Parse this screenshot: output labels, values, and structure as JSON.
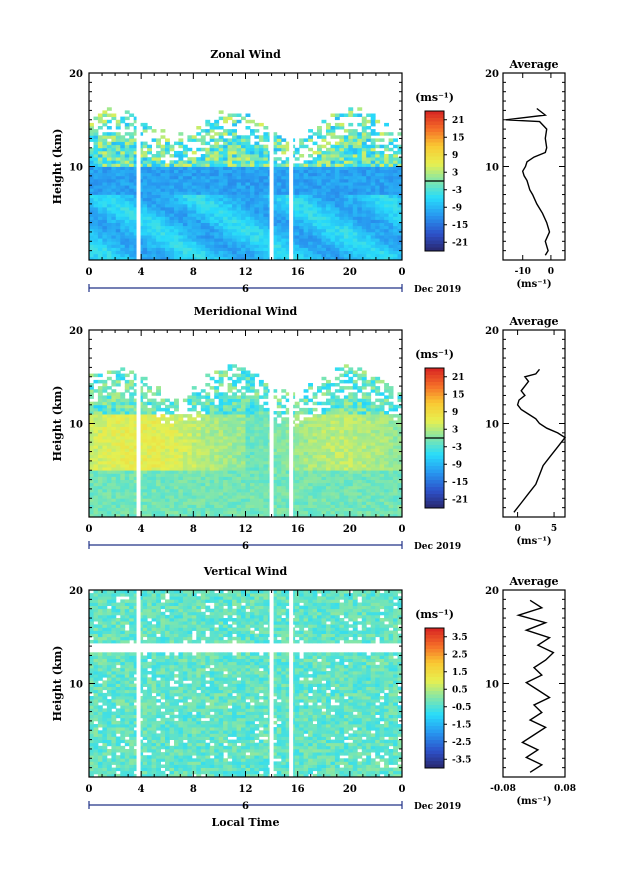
{
  "figure": {
    "date_label": "Dec 2019",
    "x_axis_title": "Local Time",
    "y_axis_title": "Height (km)",
    "unit_label": "(ms⁻¹)",
    "average_title": "Average",
    "x_tick_labels": [
      "0",
      "4",
      "8",
      "12",
      "16",
      "20",
      "0"
    ],
    "day_label": "6",
    "y_tick_labels": [
      "10",
      "20"
    ]
  },
  "chart_data": [
    {
      "type": "heatmap",
      "title": "Zonal Wind",
      "xlabel": "",
      "ylabel": "Height (km)",
      "x_range_hours": [
        0,
        24
      ],
      "y_range_km": [
        0,
        20
      ],
      "colorbar_ticks": [
        "21",
        "15",
        "9",
        "3",
        "-3",
        "-9",
        "-15",
        "-21"
      ],
      "colorbar_range": [
        -24,
        24
      ],
      "gaps_local_time": [
        3.8,
        14.0,
        15.5
      ],
      "valid_top_km": 15.5,
      "profile": {
        "title": "Average",
        "xlabel": "(ms⁻¹)",
        "x_ticks": [
          "-10",
          "0"
        ],
        "x_range": [
          -17,
          5
        ],
        "y_range": [
          0,
          20
        ],
        "x": [
          -2.0,
          -1.0,
          -2.0,
          -0.5,
          -1.5,
          -3.0,
          -5.0,
          -6.5,
          -7.5,
          -8.0,
          -8.5,
          -9.5,
          -10.0,
          -9.0,
          -8.5,
          -6.0,
          -2.0,
          -1.5,
          -2.0,
          -1.5,
          -4.0,
          -16.0,
          -2.0,
          -5.0
        ],
        "y": [
          0.5,
          1.0,
          2.0,
          3.0,
          4.0,
          5.0,
          6.0,
          7.0,
          7.5,
          8.0,
          8.5,
          9.0,
          9.5,
          10.0,
          10.5,
          11.0,
          11.5,
          12.0,
          13.0,
          14.0,
          14.8,
          15.0,
          15.5,
          16.2
        ]
      }
    },
    {
      "type": "heatmap",
      "title": "Meridional Wind",
      "xlabel": "",
      "ylabel": "Height (km)",
      "x_range_hours": [
        0,
        24
      ],
      "y_range_km": [
        0,
        20
      ],
      "colorbar_ticks": [
        "21",
        "15",
        "9",
        "3",
        "-3",
        "-9",
        "-15",
        "-21"
      ],
      "colorbar_range": [
        -24,
        24
      ],
      "gaps_local_time": [
        3.8,
        14.0,
        15.5
      ],
      "valid_top_km": 15.5,
      "profile": {
        "title": "Average",
        "xlabel": "(ms⁻¹)",
        "x_ticks": [
          "0",
          "5"
        ],
        "x_range": [
          -2,
          6.5
        ],
        "y_range": [
          0,
          20
        ],
        "x": [
          -0.5,
          0.5,
          1.5,
          2.5,
          3.0,
          3.5,
          4.5,
          5.5,
          6.5,
          5.5,
          4.0,
          3.0,
          2.5,
          1.5,
          0.5,
          0.0,
          0.2,
          1.0,
          0.5,
          1.0,
          1.5,
          1.0,
          2.5,
          3.0
        ],
        "y": [
          0.5,
          1.5,
          2.5,
          3.5,
          4.5,
          5.5,
          6.5,
          7.5,
          8.5,
          9.0,
          9.5,
          10.0,
          10.5,
          11.0,
          11.5,
          12.0,
          12.5,
          13.0,
          13.5,
          14.0,
          14.5,
          15.0,
          15.3,
          15.8
        ]
      }
    },
    {
      "type": "heatmap",
      "title": "Vertical Wind",
      "xlabel": "Local Time",
      "ylabel": "Height (km)",
      "x_range_hours": [
        0,
        24
      ],
      "y_range_km": [
        0,
        20
      ],
      "colorbar_ticks": [
        "3.5",
        "2.5",
        "1.5",
        "0.5",
        "-0.5",
        "-1.5",
        "-2.5",
        "-3.5"
      ],
      "colorbar_range": [
        -4,
        4
      ],
      "gaps_local_time": [
        3.8,
        14.0,
        15.5
      ],
      "valid_top_km": 20,
      "profile": {
        "title": "Average",
        "xlabel": "(ms⁻¹)",
        "x_ticks": [
          "-0.08",
          "0.08"
        ],
        "x_range": [
          -0.08,
          0.08
        ],
        "y_range": [
          0,
          20
        ],
        "x": [
          -0.01,
          0.02,
          -0.02,
          0.01,
          -0.03,
          0.0,
          0.03,
          -0.01,
          0.02,
          0.0,
          0.04,
          0.01,
          -0.02,
          0.02,
          0.0,
          0.03,
          0.05,
          0.01,
          0.04,
          -0.02,
          0.03,
          -0.04,
          0.02,
          -0.01
        ],
        "y": [
          0.5,
          1.3,
          2.1,
          2.9,
          3.7,
          4.5,
          5.3,
          6.1,
          6.9,
          7.7,
          8.5,
          9.3,
          10.1,
          10.9,
          11.7,
          12.5,
          13.3,
          14.1,
          14.9,
          15.7,
          16.5,
          17.3,
          18.1,
          18.9
        ]
      }
    }
  ]
}
